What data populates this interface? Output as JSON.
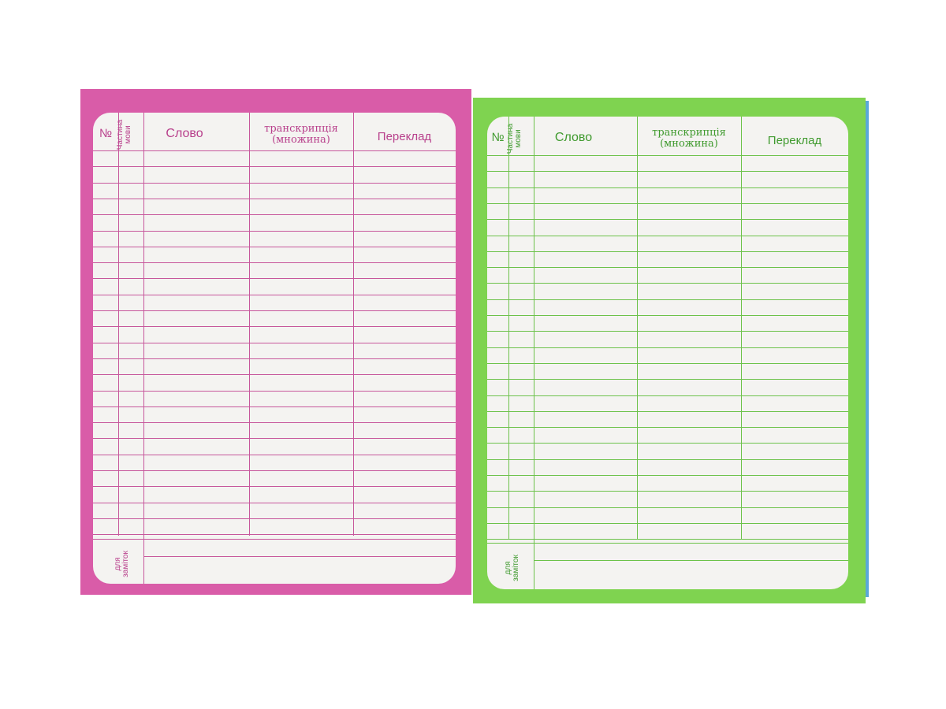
{
  "pages": [
    {
      "color": "#d95ca8",
      "line_color": "#c7579c",
      "text_color": "#b8408c",
      "header": {
        "number": "№",
        "part_of_speech": "Частина мови",
        "word": "Слово",
        "transcription": "транскрипція",
        "plural": "(множина)",
        "translation": "Переклад"
      },
      "notes_label": "для заміток"
    },
    {
      "color": "#7fd350",
      "line_color": "#6cc24a",
      "text_color": "#3f9a2e",
      "header": {
        "number": "№",
        "part_of_speech": "Частина мови",
        "word": "Слово",
        "transcription": "транскрипція",
        "plural": "(множина)",
        "translation": "Переклад"
      },
      "notes_label": "для заміток"
    }
  ]
}
